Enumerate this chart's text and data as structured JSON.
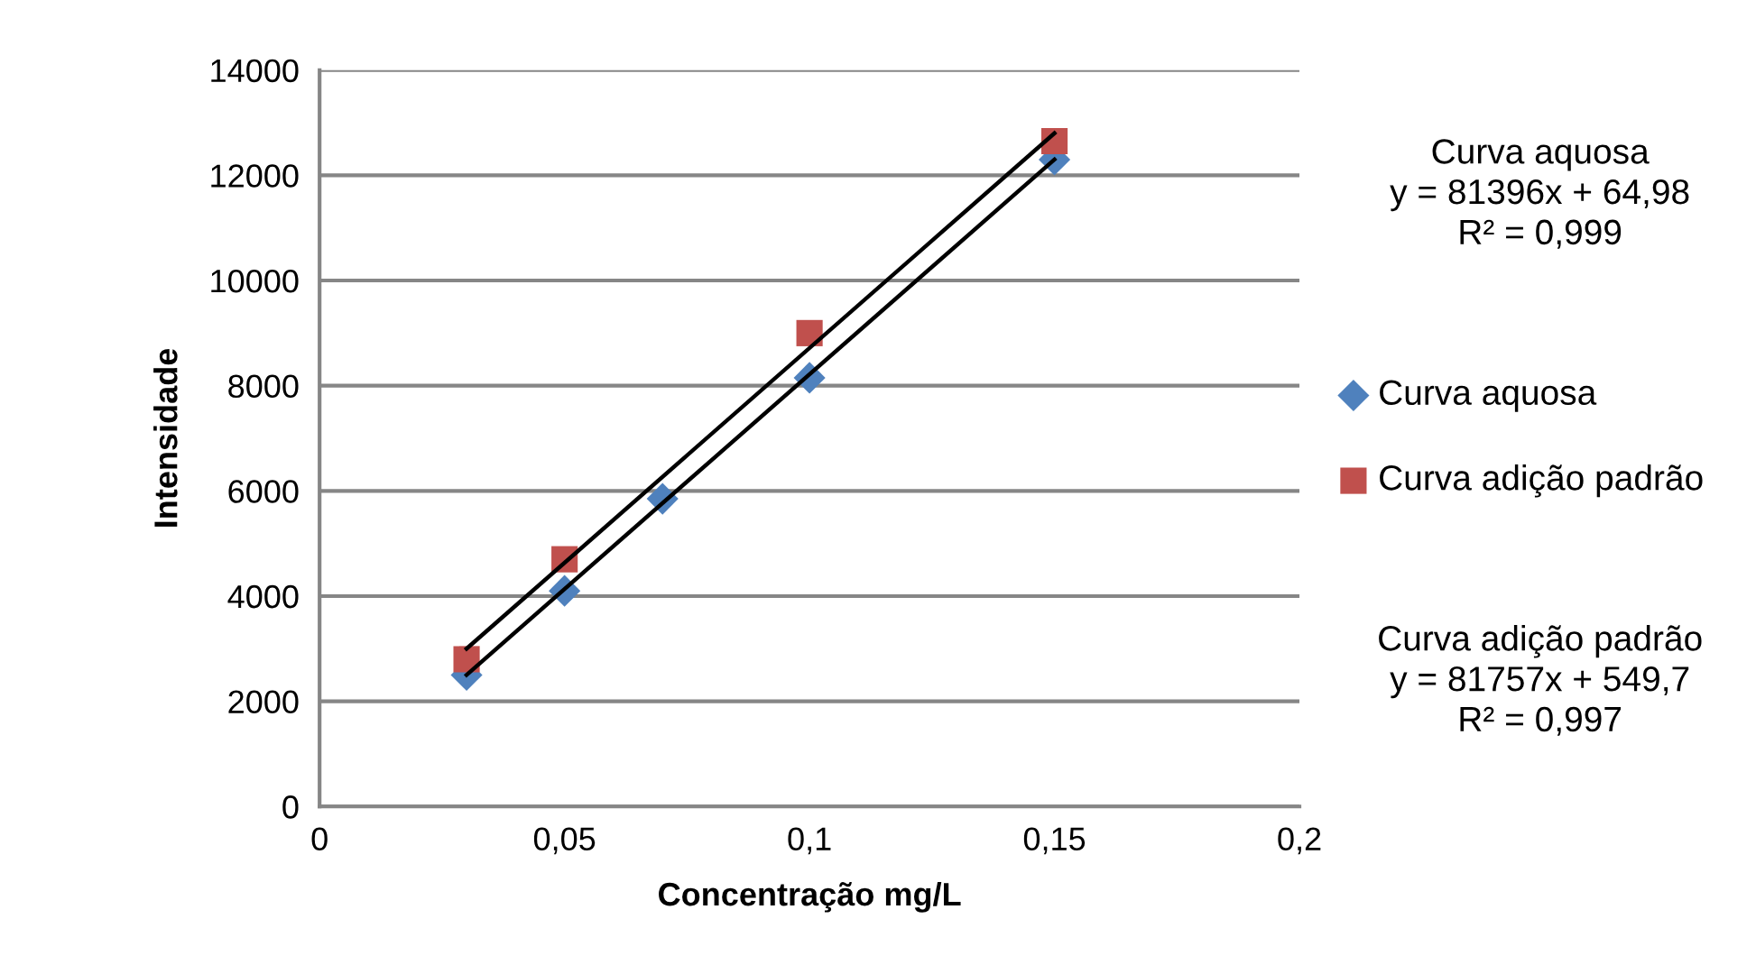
{
  "chart_data": {
    "type": "scatter",
    "xlabel": "Concentração mg/L",
    "ylabel": "Intensidade",
    "xlim": [
      0,
      0.2
    ],
    "xticks": [
      {
        "value": 0,
        "label": "0"
      },
      {
        "value": 0.05,
        "label": "0,05"
      },
      {
        "value": 0.1,
        "label": "0,1"
      },
      {
        "value": 0.15,
        "label": "0,15"
      },
      {
        "value": 0.2,
        "label": "0,2"
      }
    ],
    "ylim": [
      0,
      14000
    ],
    "yticks": [
      0,
      2000,
      4000,
      6000,
      8000,
      10000,
      12000,
      14000
    ],
    "grid": "y",
    "legend": "right",
    "series": [
      {
        "name": "Curva aquosa",
        "marker": "diamond",
        "color": "#4f81bd",
        "x": [
          0.03,
          0.05,
          0.07,
          0.1,
          0.15
        ],
        "values": [
          2500,
          4100,
          5850,
          8150,
          12300
        ]
      },
      {
        "name": "Curva adição padrão",
        "marker": "square",
        "color": "#c0504d",
        "x": [
          0.03,
          0.05,
          0.1,
          0.15
        ],
        "values": [
          2800,
          4700,
          9000,
          12650
        ]
      },
      {
        "type": "line",
        "marker": "none",
        "color": "#000000",
        "x": [
          0.03,
          0.15
        ],
        "values": [
          2500,
          12300
        ]
      },
      {
        "type": "line",
        "marker": "none",
        "color": "#000000",
        "x": [
          0.03,
          0.15
        ],
        "values": [
          3000,
          12800
        ]
      }
    ],
    "annotations": [
      "Curva aquosa\ny = 81396x + 64,98\nR² = 0,999",
      "Curva adição padrão\ny = 81757x + 549,7\nR² = 0,997"
    ]
  }
}
